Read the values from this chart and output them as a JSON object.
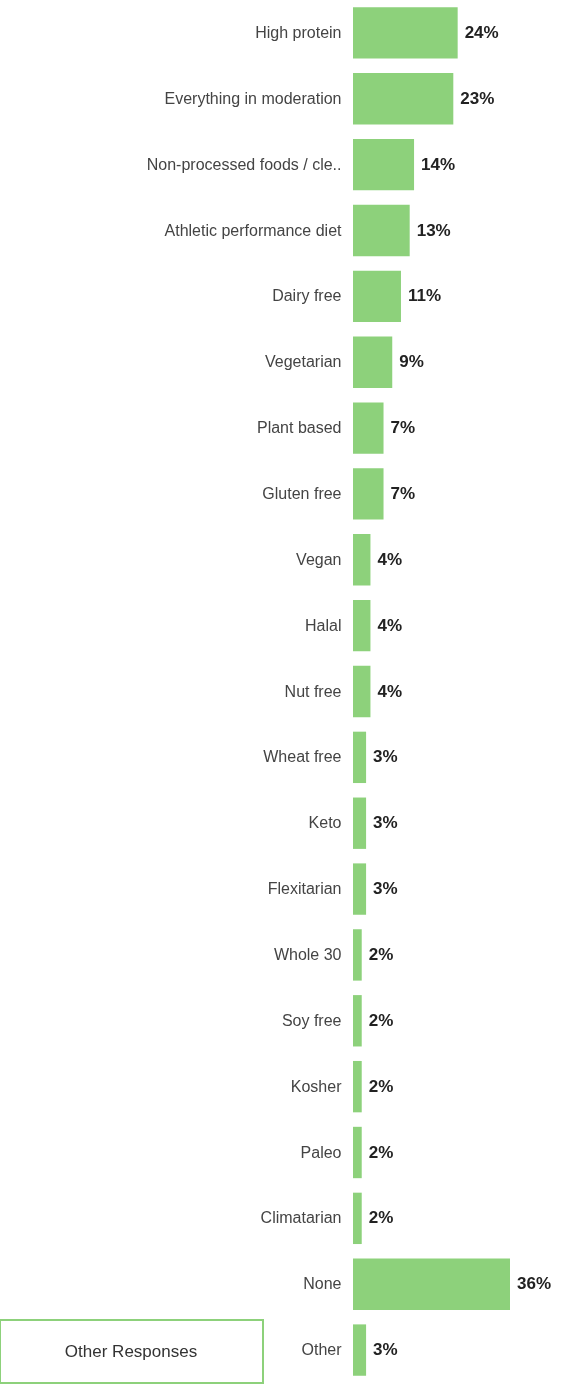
{
  "chart_data": {
    "type": "bar",
    "orientation": "horizontal",
    "categories": [
      "High protein",
      "Everything in moderation",
      "Non-processed foods / cle..",
      "Athletic performance diet",
      "Dairy free",
      "Vegetarian",
      "Plant based",
      "Gluten free",
      "Vegan",
      "Halal",
      "Nut free",
      "Wheat free",
      "Keto",
      "Flexitarian",
      "Whole 30",
      "Soy free",
      "Kosher",
      "Paleo",
      "Climatarian",
      "None",
      "Other"
    ],
    "values": [
      24,
      23,
      14,
      13,
      11,
      9,
      7,
      7,
      4,
      4,
      4,
      3,
      3,
      3,
      2,
      2,
      2,
      2,
      2,
      36,
      3
    ],
    "value_labels": [
      "24%",
      "23%",
      "14%",
      "13%",
      "11%",
      "9%",
      "7%",
      "7%",
      "4%",
      "4%",
      "4%",
      "3%",
      "3%",
      "3%",
      "2%",
      "2%",
      "2%",
      "2%",
      "2%",
      "36%",
      "3%"
    ],
    "color": "#8dd17b",
    "annotations": [
      "Other Responses"
    ]
  }
}
